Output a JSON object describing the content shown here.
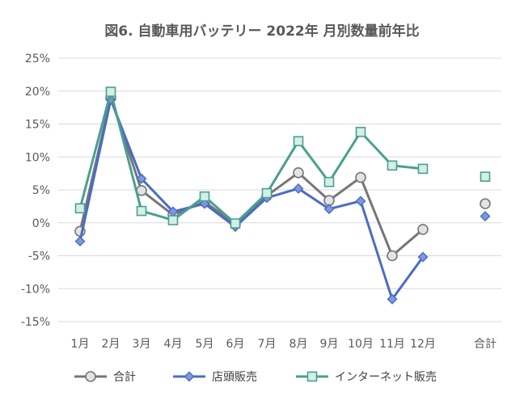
{
  "chart_data": {
    "type": "line",
    "title": "図6. 自動車用バッテリー 2022年 月別数量前年比",
    "categories": [
      "1月",
      "2月",
      "3月",
      "4月",
      "5月",
      "6月",
      "7月",
      "8月",
      "9月",
      "10月",
      "11月",
      "12月",
      "合計"
    ],
    "y_ticks": [
      "25%",
      "20%",
      "15%",
      "10%",
      "5%",
      "0%",
      "-5%",
      "-10%",
      "-15%"
    ],
    "ylim": [
      -15,
      25
    ],
    "grid": true,
    "legend_position": "bottom",
    "series": [
      {
        "name": "合計",
        "color": "#767676",
        "marker": "circle",
        "values": [
          -1.3,
          19.0,
          4.9,
          1.2,
          3.2,
          -0.2,
          4.1,
          7.6,
          3.4,
          6.9,
          -5.0,
          -1.0,
          2.9
        ]
      },
      {
        "name": "店頭販売",
        "color": "#4a6cc4",
        "marker": "diamond",
        "values": [
          -2.8,
          18.7,
          6.7,
          1.7,
          2.9,
          -0.6,
          3.8,
          5.2,
          2.1,
          3.3,
          -11.6,
          -5.2,
          1.0
        ]
      },
      {
        "name": "インターネット販売",
        "color": "#4aa08e",
        "marker": "square",
        "values": [
          2.2,
          19.9,
          1.8,
          0.4,
          4.0,
          -0.1,
          4.5,
          12.4,
          6.2,
          13.8,
          8.7,
          8.2,
          7.0
        ]
      }
    ]
  }
}
